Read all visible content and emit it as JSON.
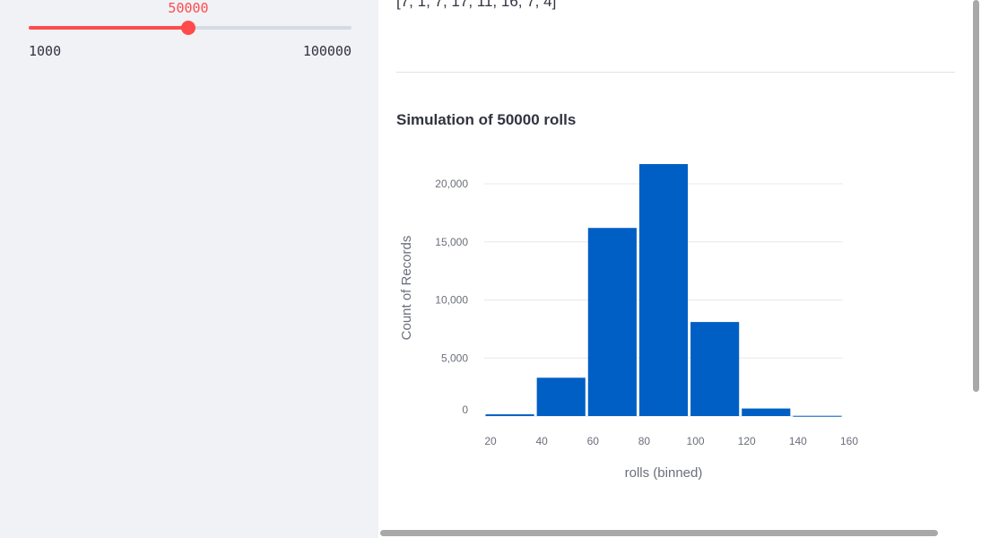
{
  "sidebar": {
    "slider": {
      "value": 50000,
      "value_label": "50000",
      "min": 1000,
      "max": 100000,
      "min_label": "1000",
      "max_label": "100000",
      "accent_color": "#ff4b4b"
    }
  },
  "main": {
    "list_text": "[7, 1, 7, 17, 11, 16, 7, 4]",
    "chart_title": "Simulation of 50000 rolls"
  },
  "chart_data": {
    "type": "bar",
    "title": "Simulation of 50000 rolls",
    "xlabel": "rolls (binned)",
    "ylabel": "Count of Records",
    "x_ticks": [
      20,
      40,
      60,
      80,
      100,
      120,
      140,
      160
    ],
    "y_ticks": [
      0,
      5000,
      10000,
      15000,
      20000
    ],
    "y_tick_labels": [
      "0",
      "5,000",
      "10,000",
      "15,000",
      "20,000"
    ],
    "xlim": [
      20,
      160
    ],
    "ylim": [
      0,
      22000
    ],
    "bins": [
      {
        "start": 20,
        "end": 40,
        "value": 150
      },
      {
        "start": 40,
        "end": 60,
        "value": 3300
      },
      {
        "start": 60,
        "end": 80,
        "value": 16200
      },
      {
        "start": 80,
        "end": 100,
        "value": 21700
      },
      {
        "start": 100,
        "end": 120,
        "value": 8100
      },
      {
        "start": 120,
        "end": 140,
        "value": 650
      },
      {
        "start": 140,
        "end": 160,
        "value": 20
      }
    ],
    "bar_color": "#005fc4",
    "grid": true
  }
}
